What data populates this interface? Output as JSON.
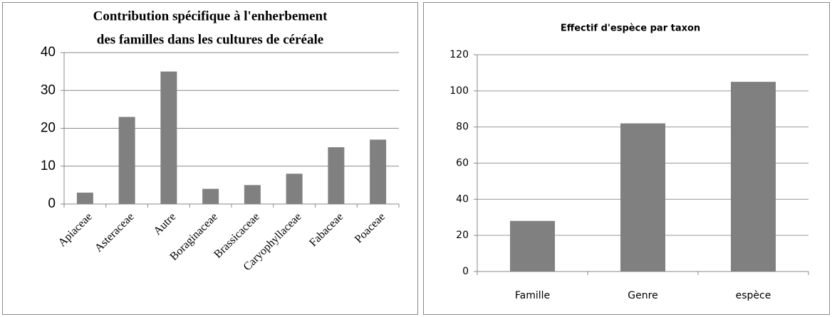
{
  "chart_data": [
    {
      "type": "bar",
      "title": [
        "Contribution spécifique à l'enherbement",
        "des familles dans les  cultures de céréale"
      ],
      "categories": [
        "Apiaceae",
        "Asteraceae",
        "Autre",
        "Boraginaceae",
        "Brassicaceae",
        "Caryophyllaceae",
        "Fabaceae",
        "Poaceae"
      ],
      "values": [
        3,
        23,
        35,
        4,
        5,
        8,
        15,
        17
      ],
      "color": "#808080",
      "ylim": [
        0,
        40
      ],
      "yticks": [
        0,
        10,
        20,
        30,
        40
      ],
      "grid": true
    },
    {
      "type": "bar",
      "title": [
        "Effectif d'espèce par taxon"
      ],
      "categories": [
        "Famille",
        "Genre",
        "espèce"
      ],
      "values": [
        28,
        82,
        105
      ],
      "color": "#808080",
      "ylim": [
        0,
        120
      ],
      "yticks": [
        0,
        20,
        40,
        60,
        80,
        100,
        120
      ],
      "grid": true
    }
  ]
}
